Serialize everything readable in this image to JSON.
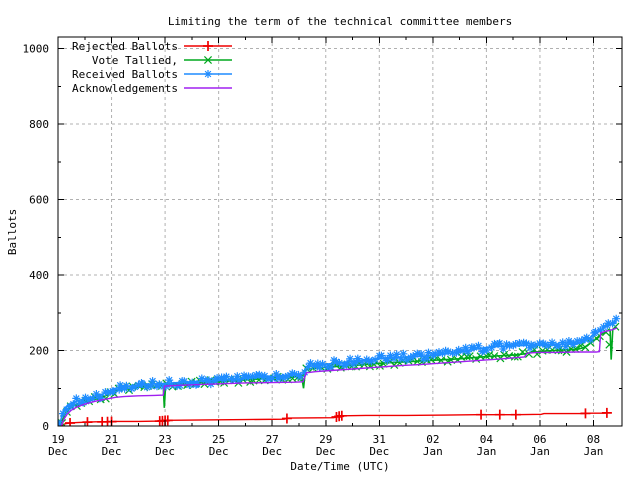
{
  "title": "Limiting the term of the technical committee members",
  "chart_data": {
    "type": "line",
    "title": "Limiting the term of the technical committee members",
    "xlabel": "Date/Time (UTC)",
    "ylabel": "Ballots",
    "ylim": [
      0,
      1000
    ],
    "xlim_days": [
      0,
      21.05
    ],
    "grid": "dashed-gray-major",
    "legend_position": "top-left-inside",
    "y_ticks": [
      0,
      200,
      400,
      600,
      800,
      1000
    ],
    "y_minor_ticks": [
      100,
      300,
      500,
      700,
      900
    ],
    "x_ticks": [
      {
        "day": 0,
        "date": "19",
        "month": "Dec"
      },
      {
        "day": 2,
        "date": "21",
        "month": "Dec"
      },
      {
        "day": 4,
        "date": "23",
        "month": "Dec"
      },
      {
        "day": 6,
        "date": "25",
        "month": "Dec"
      },
      {
        "day": 8,
        "date": "27",
        "month": "Dec"
      },
      {
        "day": 10,
        "date": "29",
        "month": "Dec"
      },
      {
        "day": 12,
        "date": "31",
        "month": "Dec"
      },
      {
        "day": 14,
        "date": "02",
        "month": "Jan"
      },
      {
        "day": 16,
        "date": "04",
        "month": "Jan"
      },
      {
        "day": 18,
        "date": "06",
        "month": "Jan"
      },
      {
        "day": 20,
        "date": "08",
        "month": "Jan"
      }
    ],
    "x_minor_tick_days": [
      1,
      3,
      5,
      7,
      9,
      11,
      13,
      15,
      17,
      19
    ],
    "x_day_zero": "19 Dec 00:00 UTC",
    "series": [
      {
        "name": "Rejected Ballots",
        "color": "#ef0000",
        "marker": "plus",
        "marker_mode": "explicit",
        "marker_days": [
          0.45,
          1.1,
          1.65,
          1.85,
          2.0,
          3.8,
          3.9,
          4.0,
          4.1,
          8.55,
          10.4,
          10.5,
          10.6,
          15.8,
          16.5,
          17.1,
          19.7,
          20.5
        ],
        "points": [
          [
            0.1,
            0
          ],
          [
            0.17,
            3
          ],
          [
            0.28,
            6
          ],
          [
            0.45,
            8
          ],
          [
            0.7,
            9
          ],
          [
            1.0,
            10
          ],
          [
            1.4,
            11
          ],
          [
            1.8,
            11
          ],
          [
            2.2,
            12
          ],
          [
            3.0,
            12
          ],
          [
            3.8,
            13
          ],
          [
            3.95,
            14
          ],
          [
            4.1,
            15
          ],
          [
            5.5,
            16
          ],
          [
            7.0,
            17
          ],
          [
            8.45,
            18
          ],
          [
            8.6,
            21
          ],
          [
            10.3,
            22
          ],
          [
            10.45,
            25
          ],
          [
            10.6,
            27
          ],
          [
            11.5,
            28
          ],
          [
            13.0,
            28
          ],
          [
            14.5,
            29
          ],
          [
            15.6,
            30
          ],
          [
            16.5,
            30
          ],
          [
            17.1,
            30
          ],
          [
            18.05,
            31
          ],
          [
            18.15,
            33
          ],
          [
            19.6,
            33
          ],
          [
            19.8,
            34
          ],
          [
            20.4,
            34
          ],
          [
            20.55,
            35
          ]
        ]
      },
      {
        "name": "Vote Tallied,",
        "color": "#00a81e",
        "marker": "cross",
        "marker_mode": "dense",
        "points": [
          [
            0.08,
            0
          ],
          [
            0.13,
            10
          ],
          [
            0.2,
            22
          ],
          [
            0.28,
            33
          ],
          [
            0.38,
            43
          ],
          [
            0.52,
            51
          ],
          [
            0.7,
            58
          ],
          [
            0.9,
            63
          ],
          [
            1.15,
            67
          ],
          [
            1.45,
            72
          ],
          [
            1.75,
            79
          ],
          [
            1.95,
            87
          ],
          [
            2.15,
            93
          ],
          [
            2.4,
            97
          ],
          [
            2.7,
            100
          ],
          [
            3.0,
            103
          ],
          [
            3.35,
            105
          ],
          [
            3.7,
            106
          ],
          [
            3.93,
            107
          ],
          [
            3.97,
            48
          ],
          [
            4.02,
            109
          ],
          [
            4.4,
            111
          ],
          [
            4.8,
            113
          ],
          [
            5.2,
            114
          ],
          [
            5.6,
            116
          ],
          [
            6.0,
            117
          ],
          [
            6.4,
            119
          ],
          [
            6.8,
            121
          ],
          [
            7.2,
            123
          ],
          [
            7.6,
            125
          ],
          [
            8.0,
            127
          ],
          [
            8.4,
            129
          ],
          [
            8.8,
            131
          ],
          [
            9.1,
            132
          ],
          [
            9.17,
            100
          ],
          [
            9.24,
            148
          ],
          [
            9.45,
            152
          ],
          [
            9.7,
            154
          ],
          [
            10.1,
            156
          ],
          [
            10.5,
            158
          ],
          [
            11.0,
            160
          ],
          [
            11.5,
            163
          ],
          [
            12.0,
            166
          ],
          [
            12.5,
            168
          ],
          [
            13.0,
            170
          ],
          [
            13.5,
            172
          ],
          [
            14.0,
            174
          ],
          [
            14.5,
            176
          ],
          [
            15.0,
            178
          ],
          [
            15.5,
            181
          ],
          [
            16.0,
            184
          ],
          [
            16.5,
            186
          ],
          [
            17.0,
            188
          ],
          [
            17.4,
            191
          ],
          [
            17.7,
            195
          ],
          [
            18.1,
            198
          ],
          [
            18.5,
            200
          ],
          [
            19.0,
            202
          ],
          [
            19.4,
            203
          ],
          [
            19.65,
            208
          ],
          [
            19.9,
            220
          ],
          [
            20.1,
            232
          ],
          [
            20.3,
            243
          ],
          [
            20.5,
            252
          ],
          [
            20.62,
            254
          ],
          [
            20.66,
            176
          ],
          [
            20.72,
            256
          ],
          [
            20.8,
            259
          ],
          [
            20.88,
            261
          ]
        ]
      },
      {
        "name": "Received Ballots",
        "color": "#1e8cff",
        "marker": "star",
        "marker_mode": "dense",
        "points": [
          [
            0.04,
            0
          ],
          [
            0.07,
            5
          ],
          [
            0.1,
            14
          ],
          [
            0.14,
            26
          ],
          [
            0.18,
            36
          ],
          [
            0.23,
            44
          ],
          [
            0.3,
            51
          ],
          [
            0.4,
            57
          ],
          [
            0.55,
            62
          ],
          [
            0.7,
            66
          ],
          [
            0.9,
            70
          ],
          [
            1.1,
            74
          ],
          [
            1.35,
            78
          ],
          [
            1.6,
            83
          ],
          [
            1.8,
            88
          ],
          [
            1.95,
            94
          ],
          [
            2.1,
            99
          ],
          [
            2.3,
            102
          ],
          [
            2.55,
            105
          ],
          [
            2.85,
            107
          ],
          [
            3.15,
            109
          ],
          [
            3.5,
            111
          ],
          [
            3.9,
            112
          ],
          [
            4.3,
            114
          ],
          [
            4.7,
            116
          ],
          [
            5.1,
            117
          ],
          [
            5.5,
            119
          ],
          [
            5.9,
            120
          ],
          [
            6.3,
            122
          ],
          [
            6.7,
            124
          ],
          [
            7.1,
            127
          ],
          [
            7.5,
            129
          ],
          [
            7.9,
            131
          ],
          [
            8.3,
            133
          ],
          [
            8.7,
            135
          ],
          [
            9.0,
            136
          ],
          [
            9.15,
            138
          ],
          [
            9.25,
            152
          ],
          [
            9.4,
            158
          ],
          [
            9.6,
            161
          ],
          [
            9.9,
            163
          ],
          [
            10.2,
            165
          ],
          [
            10.6,
            168
          ],
          [
            11.0,
            171
          ],
          [
            11.4,
            174
          ],
          [
            11.8,
            177
          ],
          [
            12.2,
            180
          ],
          [
            12.6,
            182
          ],
          [
            13.0,
            183
          ],
          [
            13.4,
            184
          ],
          [
            13.8,
            186
          ],
          [
            14.2,
            189
          ],
          [
            14.6,
            192
          ],
          [
            15.0,
            196
          ],
          [
            15.4,
            201
          ],
          [
            15.8,
            206
          ],
          [
            16.1,
            209
          ],
          [
            16.5,
            211
          ],
          [
            16.9,
            212
          ],
          [
            17.3,
            213
          ],
          [
            17.7,
            214
          ],
          [
            18.1,
            215
          ],
          [
            18.5,
            216
          ],
          [
            18.9,
            217
          ],
          [
            19.3,
            218
          ],
          [
            19.5,
            219
          ],
          [
            19.65,
            224
          ],
          [
            19.85,
            233
          ],
          [
            20.05,
            243
          ],
          [
            20.25,
            254
          ],
          [
            20.45,
            264
          ],
          [
            20.6,
            270
          ],
          [
            20.75,
            274
          ],
          [
            20.85,
            276
          ]
        ]
      },
      {
        "name": "Acknowledgements",
        "color": "#a020f0",
        "marker": "none",
        "marker_mode": "none",
        "points": [
          [
            0.12,
            0
          ],
          [
            0.22,
            18
          ],
          [
            0.35,
            32
          ],
          [
            0.5,
            42
          ],
          [
            0.7,
            50
          ],
          [
            0.95,
            57
          ],
          [
            1.25,
            63
          ],
          [
            1.55,
            68
          ],
          [
            1.85,
            72
          ],
          [
            2.15,
            76
          ],
          [
            2.45,
            78
          ],
          [
            3.0,
            80
          ],
          [
            3.6,
            81
          ],
          [
            3.93,
            82
          ],
          [
            3.98,
            106
          ],
          [
            4.6,
            108
          ],
          [
            5.4,
            110
          ],
          [
            6.2,
            112
          ],
          [
            7.0,
            114
          ],
          [
            8.0,
            115
          ],
          [
            8.8,
            116
          ],
          [
            9.15,
            117
          ],
          [
            9.28,
            141
          ],
          [
            9.6,
            144
          ],
          [
            10.0,
            146
          ],
          [
            10.6,
            149
          ],
          [
            11.2,
            152
          ],
          [
            12.0,
            156
          ],
          [
            12.8,
            160
          ],
          [
            13.6,
            163
          ],
          [
            14.4,
            167
          ],
          [
            15.2,
            171
          ],
          [
            16.0,
            175
          ],
          [
            16.6,
            178
          ],
          [
            17.1,
            181
          ],
          [
            17.42,
            183
          ],
          [
            17.52,
            193
          ],
          [
            17.9,
            195
          ],
          [
            18.6,
            195
          ],
          [
            19.3,
            196
          ],
          [
            20.1,
            196
          ],
          [
            20.22,
            197
          ],
          [
            20.27,
            247
          ],
          [
            20.45,
            251
          ],
          [
            20.6,
            253
          ],
          [
            20.75,
            256
          ],
          [
            20.88,
            260
          ]
        ]
      }
    ]
  },
  "colors": {
    "background": "#ffffff",
    "border": "#000000",
    "grid": "#b0b0b0",
    "rejected": "#ef0000",
    "tallied": "#00a81e",
    "received": "#1e8cff",
    "acknowledgements": "#a020f0"
  }
}
